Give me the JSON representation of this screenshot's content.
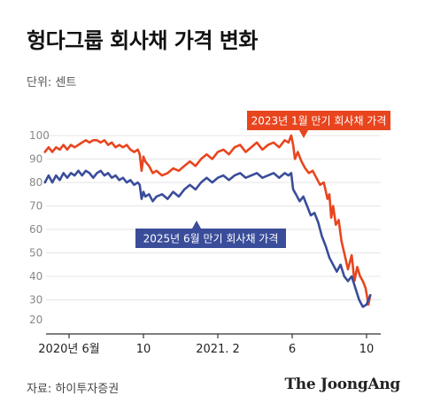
{
  "title": "헝다그룹 회사채 가격 변화",
  "unit_label": "단위: 센트",
  "source": "자료: 하이투자증권",
  "brand": "The JoongAng",
  "colors": {
    "series_2023": "#e8451e",
    "series_2025": "#3a4d9a",
    "grid": "#e5e5e5",
    "axis": "#333333"
  },
  "chart_data": {
    "type": "line",
    "title": "헝다그룹 회사채 가격 변화",
    "ylabel": "단위: 센트",
    "ylim": [
      25,
      100
    ],
    "yticks": [
      100,
      90,
      80,
      70,
      60,
      50,
      40,
      30,
      20
    ],
    "xlim": [
      0,
      19.5
    ],
    "xticks": [
      {
        "x": 0,
        "label": "2020년 6월"
      },
      {
        "x": 4,
        "label": "10"
      },
      {
        "x": 8,
        "label": "2021. 2"
      },
      {
        "x": 12,
        "label": "6"
      },
      {
        "x": 16,
        "label": "10"
      }
    ],
    "grid": true,
    "series": [
      {
        "name": "2023년 1월 만기 회사채 가격",
        "color": "#e8451e",
        "x": [
          -1.3,
          -1.1,
          -0.9,
          -0.7,
          -0.5,
          -0.3,
          -0.1,
          0.1,
          0.3,
          0.5,
          0.7,
          0.9,
          1.1,
          1.3,
          1.5,
          1.7,
          1.9,
          2.1,
          2.3,
          2.5,
          2.7,
          2.9,
          3.1,
          3.3,
          3.5,
          3.7,
          3.8,
          3.9,
          4.0,
          4.1,
          4.3,
          4.5,
          4.7,
          5.0,
          5.3,
          5.6,
          5.9,
          6.2,
          6.5,
          6.8,
          7.1,
          7.4,
          7.7,
          8.0,
          8.3,
          8.6,
          8.9,
          9.2,
          9.5,
          9.8,
          10.1,
          10.4,
          10.7,
          11.0,
          11.3,
          11.6,
          11.8,
          11.95,
          12.05,
          12.15,
          12.3,
          12.5,
          12.7,
          12.9,
          13.1,
          13.3,
          13.5,
          13.7,
          13.9,
          14.0,
          14.1,
          14.2,
          14.35,
          14.5,
          14.65,
          14.8,
          15.0,
          15.2,
          15.35,
          15.5,
          15.65,
          15.8,
          15.95,
          16.1,
          16.2
        ],
        "y": [
          93,
          95,
          93,
          95,
          94,
          96,
          94,
          96,
          95,
          96,
          97,
          98,
          97,
          98,
          98,
          97,
          98,
          96,
          97,
          95,
          96,
          95,
          96,
          94,
          93,
          94,
          92,
          85,
          91,
          89,
          87,
          84,
          85,
          83,
          84,
          86,
          85,
          87,
          89,
          87,
          90,
          92,
          90,
          93,
          94,
          92,
          95,
          96,
          93,
          95,
          97,
          94,
          96,
          97,
          95,
          98,
          97,
          100,
          96,
          90,
          93,
          89,
          86,
          84,
          85,
          82,
          79,
          80,
          73,
          75,
          65,
          70,
          62,
          64,
          55,
          50,
          43,
          49,
          38,
          44,
          40,
          38,
          35,
          28,
          32
        ]
      },
      {
        "name": "2025년 6월 만기 회사채 가격",
        "color": "#3a4d9a",
        "x": [
          -1.3,
          -1.1,
          -0.9,
          -0.7,
          -0.5,
          -0.3,
          -0.1,
          0.1,
          0.3,
          0.5,
          0.7,
          0.9,
          1.1,
          1.3,
          1.5,
          1.7,
          1.9,
          2.1,
          2.3,
          2.5,
          2.7,
          2.9,
          3.1,
          3.3,
          3.5,
          3.7,
          3.8,
          3.9,
          4.0,
          4.1,
          4.3,
          4.5,
          4.7,
          5.0,
          5.3,
          5.6,
          5.9,
          6.2,
          6.5,
          6.8,
          7.1,
          7.4,
          7.7,
          8.0,
          8.3,
          8.6,
          8.9,
          9.2,
          9.5,
          9.8,
          10.1,
          10.4,
          10.7,
          11.0,
          11.3,
          11.6,
          11.8,
          11.95,
          12.05,
          12.2,
          12.4,
          12.6,
          12.8,
          13.0,
          13.2,
          13.4,
          13.6,
          13.8,
          14.0,
          14.2,
          14.4,
          14.6,
          14.8,
          15.0,
          15.2,
          15.4,
          15.6,
          15.8,
          16.0,
          16.2
        ],
        "y": [
          80,
          83,
          80,
          83,
          81,
          84,
          82,
          84,
          83,
          85,
          83,
          85,
          84,
          82,
          84,
          85,
          83,
          84,
          82,
          83,
          81,
          82,
          80,
          81,
          79,
          80,
          79,
          73,
          76,
          74,
          75,
          72,
          74,
          75,
          73,
          76,
          74,
          77,
          79,
          77,
          80,
          82,
          80,
          82,
          83,
          81,
          83,
          84,
          82,
          83,
          84,
          82,
          83,
          84,
          82,
          84,
          83,
          84,
          77,
          75,
          72,
          74,
          70,
          66,
          67,
          63,
          57,
          53,
          48,
          45,
          42,
          45,
          40,
          38,
          40,
          35,
          30,
          27,
          28,
          32
        ]
      }
    ],
    "annotations": [
      {
        "text": "2023년 1월 만기 회사채 가격",
        "series": 0
      },
      {
        "text": "2025년 6월 만기 회사채 가격",
        "series": 1
      }
    ]
  }
}
